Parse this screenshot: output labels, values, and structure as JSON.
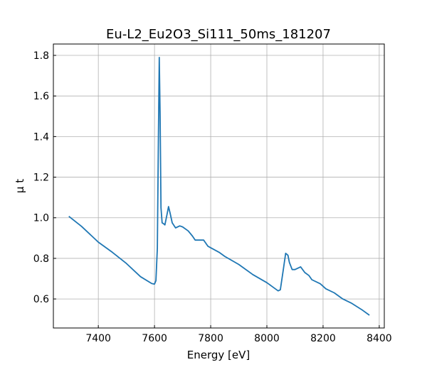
{
  "chart_data": {
    "type": "line",
    "title": "Eu-L2_Eu2O3_Si111_50ms_181207",
    "xlabel": "Energy [eV]",
    "ylabel": "μ t",
    "xlim": [
      7240,
      8418
    ],
    "ylim": [
      0.457,
      1.856
    ],
    "xticks": [
      7400,
      7600,
      7800,
      8000,
      8200,
      8400
    ],
    "yticks": [
      0.6,
      0.8,
      1.0,
      1.2,
      1.4,
      1.6,
      1.8
    ],
    "xtick_labels": [
      "7400",
      "7600",
      "7800",
      "8000",
      "8200",
      "8400"
    ],
    "ytick_labels": [
      "0.6",
      "0.8",
      "1.0",
      "1.2",
      "1.4",
      "1.6",
      "1.8"
    ],
    "grid": true,
    "color": "#1f77b4",
    "series": [
      {
        "name": "mu t",
        "x": [
          7295,
          7340,
          7400,
          7450,
          7500,
          7550,
          7590,
          7600,
          7605,
          7610,
          7614,
          7617,
          7620,
          7623,
          7627,
          7633,
          7637,
          7645,
          7650,
          7656,
          7663,
          7675,
          7690,
          7700,
          7720,
          7735,
          7745,
          7775,
          7790,
          7830,
          7850,
          7900,
          7950,
          8000,
          8040,
          8048,
          8058,
          8067,
          8075,
          8080,
          8090,
          8100,
          8120,
          8135,
          8150,
          8160,
          8190,
          8210,
          8240,
          8270,
          8300,
          8340,
          8365
        ],
        "y": [
          1.007,
          0.958,
          0.88,
          0.83,
          0.775,
          0.71,
          0.676,
          0.673,
          0.69,
          0.85,
          1.4,
          1.79,
          1.5,
          1.05,
          0.975,
          0.97,
          0.965,
          1.02,
          1.055,
          1.02,
          0.975,
          0.95,
          0.96,
          0.955,
          0.935,
          0.91,
          0.89,
          0.89,
          0.86,
          0.83,
          0.81,
          0.77,
          0.72,
          0.68,
          0.64,
          0.645,
          0.74,
          0.825,
          0.815,
          0.78,
          0.745,
          0.745,
          0.758,
          0.73,
          0.715,
          0.695,
          0.675,
          0.65,
          0.63,
          0.6,
          0.58,
          0.545,
          0.52
        ]
      }
    ]
  }
}
